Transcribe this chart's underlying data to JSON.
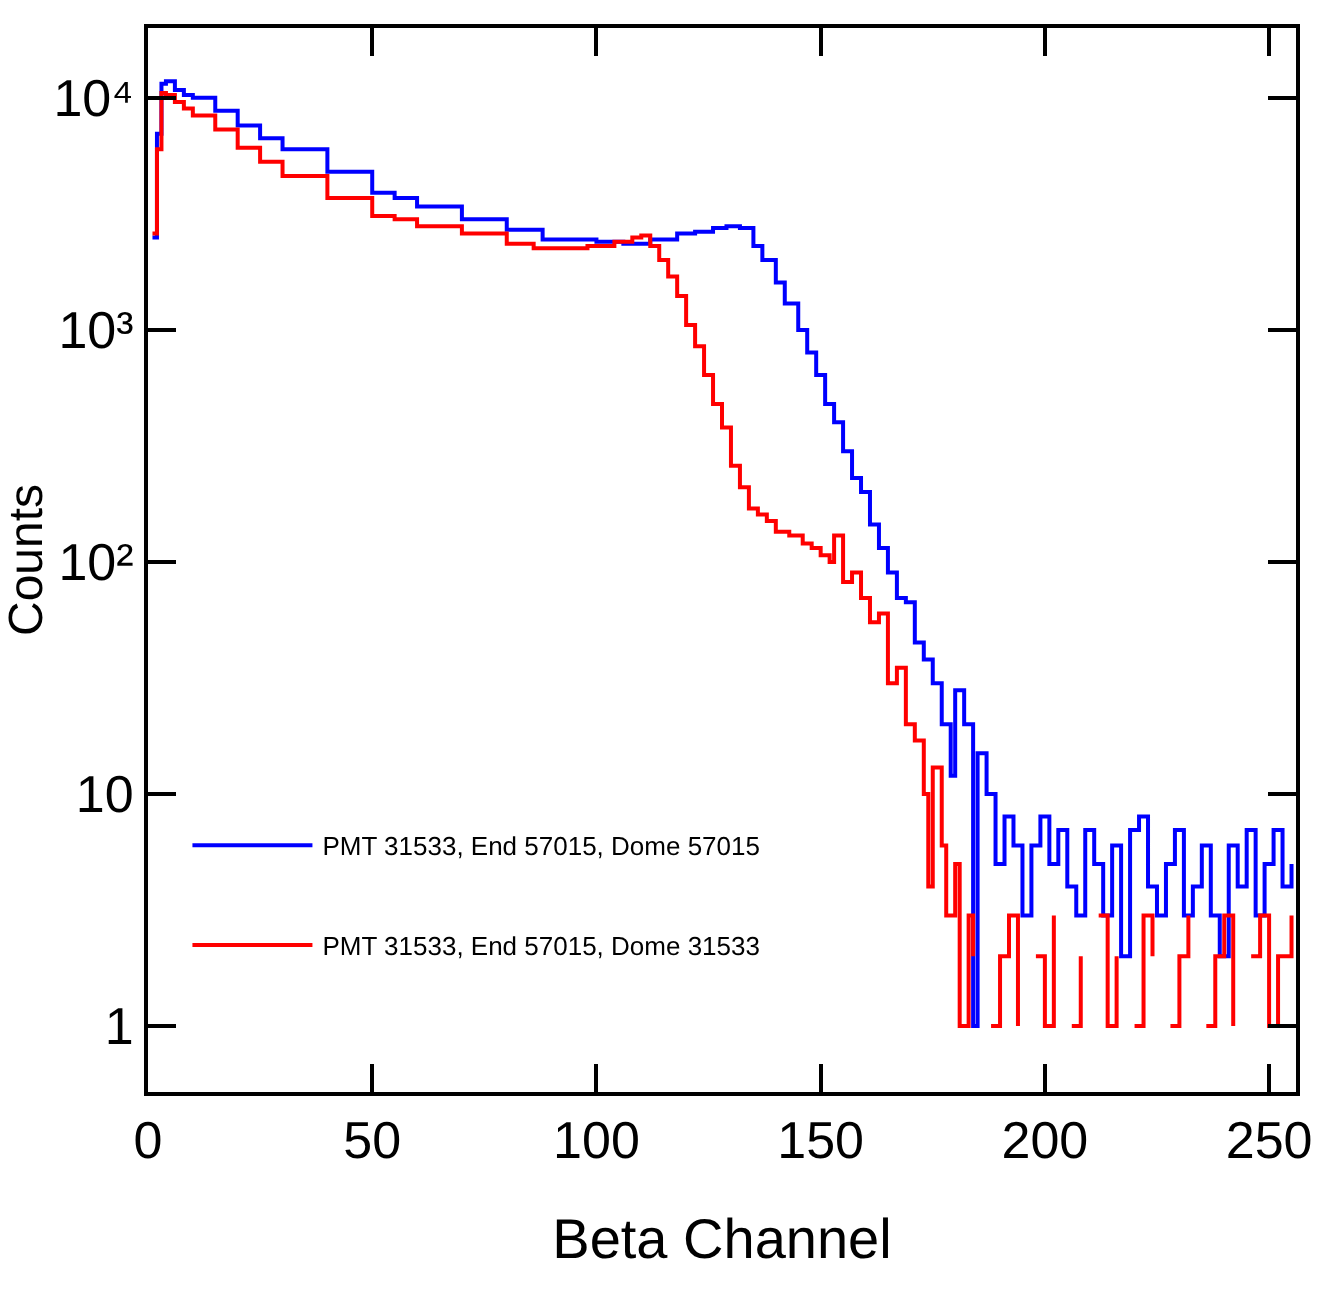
{
  "chart_data": {
    "type": "step",
    "xlabel": "Beta Channel",
    "ylabel": "Counts",
    "log": "y",
    "xlim": [
      0,
      256
    ],
    "xticks": [
      0,
      50,
      100,
      150,
      200,
      250
    ],
    "ylim": [
      0.52,
      20000
    ],
    "yticks": [
      1,
      10,
      {
        "value": 100,
        "label": "10²"
      },
      {
        "value": 1000,
        "label": "10³"
      },
      {
        "value": 10000,
        "label": "10⁴"
      }
    ],
    "grid": false,
    "legend": "bottom left",
    "line_style": "solid",
    "marker": "none",
    "series": [
      {
        "name": "PMT 31533, End 57015, Dome 57015",
        "color": "#0000ff",
        "x": [
          1,
          2,
          3,
          4,
          6,
          8,
          10,
          15,
          20,
          25,
          30,
          40,
          50,
          55,
          60,
          70,
          80,
          88,
          95,
          100,
          106,
          112,
          118,
          122,
          126,
          129,
          132,
          135,
          137,
          140,
          142,
          145,
          147,
          149,
          151,
          153,
          155,
          157,
          159,
          161,
          163,
          165,
          167,
          169,
          171,
          173,
          175,
          177,
          179,
          180,
          182,
          184,
          185,
          187,
          189,
          191,
          193,
          195,
          197,
          199,
          201,
          203,
          205,
          207,
          209,
          211,
          213,
          215,
          217,
          219,
          221,
          223,
          225,
          227,
          229,
          231,
          233,
          235,
          237,
          239,
          241,
          243,
          245,
          247,
          249,
          251,
          253,
          255
        ],
        "values": [
          2500,
          7000,
          11500,
          11800,
          10800,
          10300,
          10000,
          8800,
          7600,
          6700,
          6000,
          4800,
          3900,
          3700,
          3400,
          3000,
          2700,
          2450,
          2450,
          2400,
          2350,
          2450,
          2600,
          2650,
          2750,
          2800,
          2750,
          2300,
          2000,
          1600,
          1300,
          1000,
          800,
          640,
          480,
          400,
          300,
          230,
          200,
          145,
          115,
          90,
          70,
          67,
          45,
          38,
          30,
          20,
          12,
          28,
          20,
          1,
          15,
          10,
          5,
          8,
          6,
          3,
          6,
          8,
          5,
          7,
          4,
          3,
          7,
          5,
          3,
          6,
          2,
          7,
          8,
          4,
          3,
          5,
          7,
          3,
          4,
          6,
          3,
          2,
          6,
          4,
          7,
          3,
          5,
          7,
          4,
          5
        ]
      },
      {
        "name": "PMT 31533, End 57015, Dome 31533",
        "color": "#ff0000",
        "x": [
          1,
          2,
          3,
          4,
          6,
          8,
          10,
          15,
          20,
          25,
          30,
          40,
          50,
          55,
          60,
          70,
          80,
          86,
          92,
          98,
          104,
          108,
          110,
          112,
          114,
          116,
          118,
          120,
          122,
          124,
          126,
          128,
          130,
          132,
          134,
          136,
          138,
          140,
          143,
          146,
          148,
          150,
          152,
          153,
          155,
          157,
          159,
          161,
          163,
          165,
          167,
          169,
          171,
          173,
          174,
          175,
          177,
          178,
          180,
          181,
          183,
          184,
          186,
          188,
          190,
          192,
          194,
          196,
          198,
          200,
          202,
          204,
          206,
          208,
          210,
          212,
          214,
          216,
          218,
          220,
          222,
          224,
          226,
          228,
          230,
          232,
          234,
          236,
          238,
          240,
          242,
          244,
          246,
          248,
          250,
          252,
          254,
          255
        ],
        "values": [
          2600,
          6000,
          10500,
          10300,
          9600,
          9000,
          8400,
          7300,
          6100,
          5300,
          4600,
          3700,
          3100,
          3000,
          2800,
          2600,
          2350,
          2250,
          2250,
          2300,
          2400,
          2500,
          2550,
          2300,
          2000,
          1700,
          1400,
          1050,
          850,
          640,
          480,
          380,
          260,
          210,
          170,
          160,
          150,
          135,
          130,
          120,
          115,
          107,
          100,
          130,
          82,
          90,
          70,
          55,
          60,
          30,
          35,
          20,
          17,
          10,
          4,
          13,
          6,
          3,
          5,
          1,
          3,
          2,
          null,
          1,
          2,
          3,
          1,
          null,
          2,
          1,
          3,
          null,
          1,
          2,
          null,
          3,
          1,
          2,
          null,
          1,
          3,
          2,
          null,
          1,
          2,
          3,
          null,
          1,
          2,
          3,
          1,
          null,
          2,
          3,
          1,
          2,
          2,
          3
        ]
      }
    ]
  }
}
